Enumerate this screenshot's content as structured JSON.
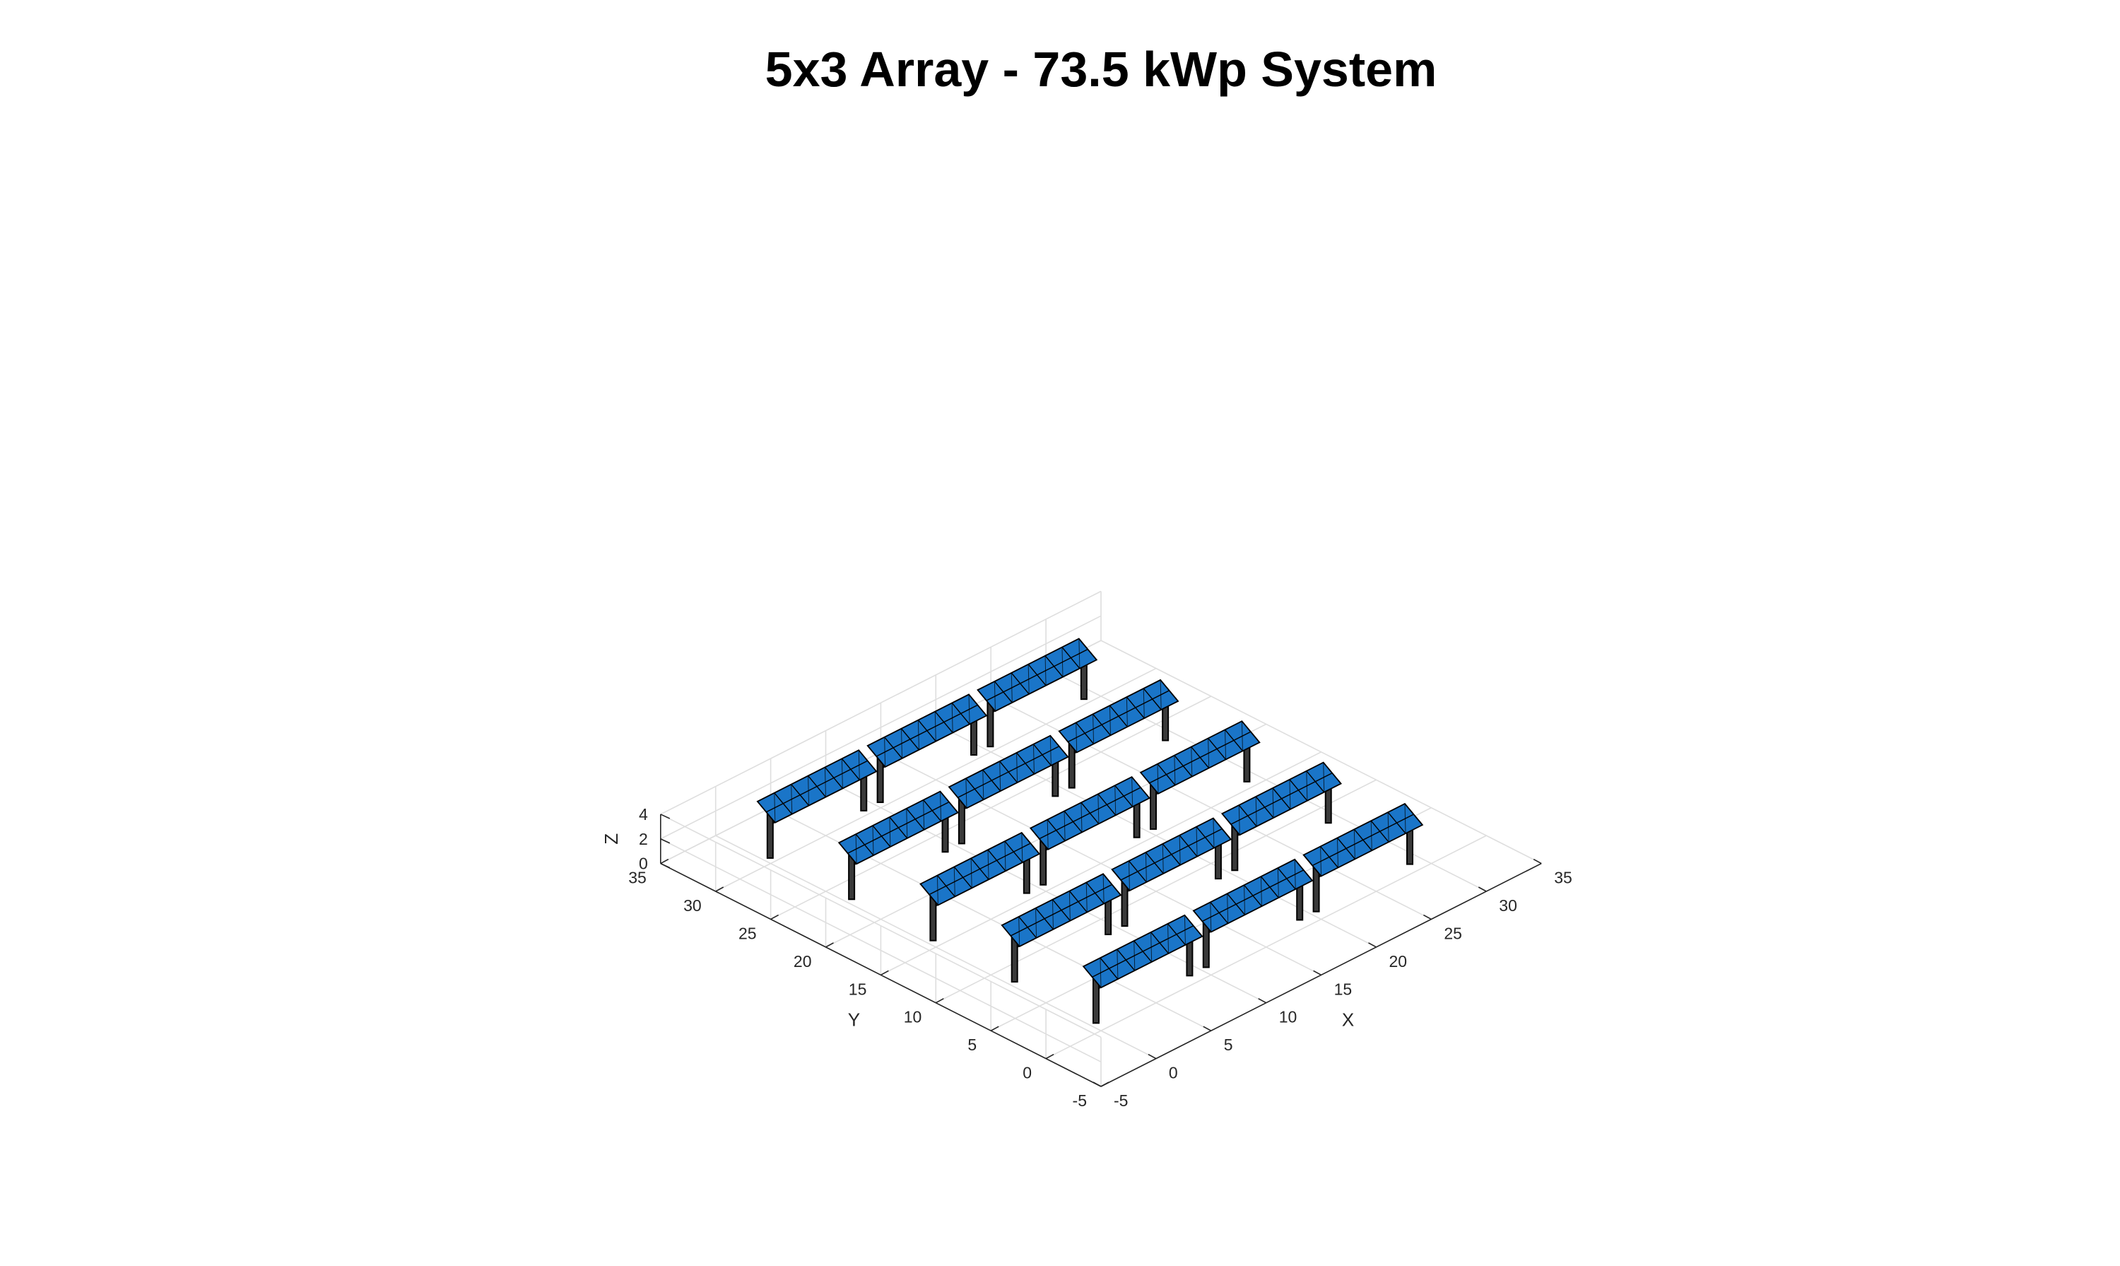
{
  "chart_data": {
    "type": "3d-structure",
    "title": "5x3 Array - 73.5 kWp System",
    "xlabel": "X",
    "ylabel": "Y",
    "zlabel": "Z",
    "xlim": [
      -5,
      35
    ],
    "ylim": [
      -5,
      35
    ],
    "zlim": [
      0,
      4
    ],
    "xticks": [
      "-5",
      "0",
      "5",
      "10",
      "15",
      "20",
      "25",
      "30",
      "35"
    ],
    "yticks": [
      "-5",
      "0",
      "5",
      "10",
      "15",
      "20",
      "25",
      "30",
      "35"
    ],
    "zticks": [
      "0",
      "2",
      "4"
    ],
    "grid": true,
    "panel_color": "#1A75C8",
    "rows": 5,
    "tables_per_row": 3,
    "panels_per_table": 6,
    "row_y_positions": [
      0,
      7.4,
      14.8,
      22.2,
      29.6
    ],
    "table_x_ranges": [
      [
        0,
        9.2
      ],
      [
        10,
        19.2
      ],
      [
        20,
        29.2
      ]
    ],
    "panel_z_range": [
      3.5,
      4.5
    ],
    "post_height": 3.6
  }
}
